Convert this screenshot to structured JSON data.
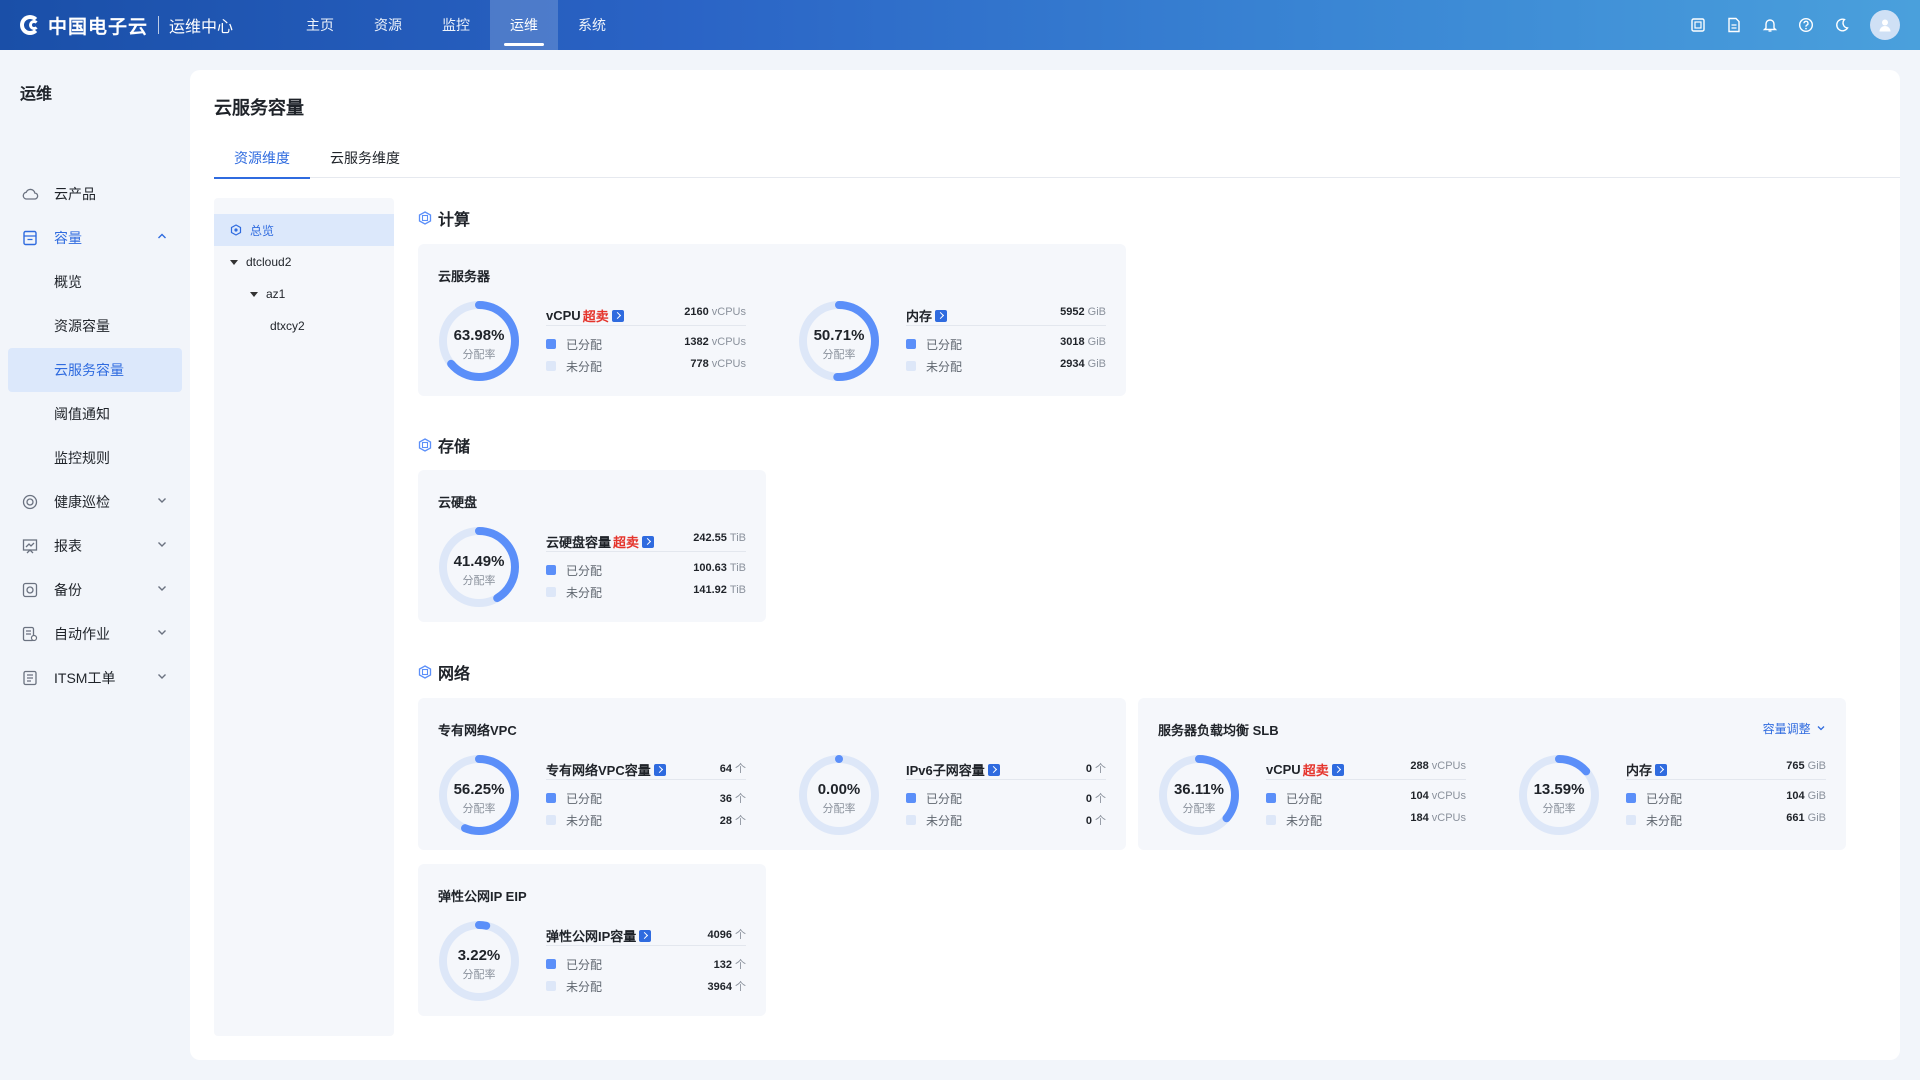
{
  "brand": {
    "name": "中国电子云",
    "sub": "运维中心"
  },
  "nav": [
    "主页",
    "资源",
    "监控",
    "运维",
    "系统"
  ],
  "nav_active": 3,
  "top_icons": [
    "screen-icon",
    "document-icon",
    "bell-icon",
    "help-icon",
    "moon-icon",
    "user-icon"
  ],
  "sidebar": {
    "title": "运维",
    "items": [
      {
        "label": "云产品",
        "icon": "cloud-icon"
      },
      {
        "label": "容量",
        "icon": "capacity-icon",
        "open": true,
        "children": [
          "概览",
          "资源容量",
          "云服务容量",
          "阈值通知",
          "监控规则"
        ]
      },
      {
        "label": "健康巡检",
        "icon": "health-icon"
      },
      {
        "label": "报表",
        "icon": "report-icon"
      },
      {
        "label": "备份",
        "icon": "backup-icon"
      },
      {
        "label": "自动作业",
        "icon": "automation-icon"
      },
      {
        "label": "ITSM工单",
        "icon": "ticket-icon"
      }
    ],
    "active_child": "云服务容量"
  },
  "page": {
    "title": "云服务容量",
    "tabs": [
      "资源维度",
      "云服务维度"
    ],
    "active_tab": 0
  },
  "tree": {
    "root": "总览",
    "nodes": [
      {
        "label": "dtcloud2",
        "level": 1
      },
      {
        "label": "az1",
        "level": 2
      },
      {
        "label": "dtxcy2",
        "level": 3
      }
    ]
  },
  "common": {
    "ratio_label": "分配率",
    "allocated": "已分配",
    "unallocated": "未分配",
    "oversell": "超卖"
  },
  "colors": {
    "primary": "#2f6bdf",
    "ring": "#5b8ff9",
    "ring_track": "#dde7f8",
    "allocated": "#5b8ff9",
    "unallocated": "#dde7f8",
    "oversell": "#e5342c"
  },
  "sections": {
    "compute": {
      "title": "计算",
      "card": {
        "title": "云服务器",
        "metrics": [
          {
            "name": "vCPU",
            "oversell": true,
            "pct": "63.98%",
            "ratio": 0.6398,
            "total": "2160",
            "allocated": "1382",
            "unallocated": "778",
            "unit": "vCPUs"
          },
          {
            "name": "内存",
            "oversell": false,
            "pct": "50.71%",
            "ratio": 0.5071,
            "total": "5952",
            "allocated": "3018",
            "unallocated": "2934",
            "unit": "GiB"
          }
        ]
      }
    },
    "storage": {
      "title": "存储",
      "card": {
        "title": "云硬盘",
        "metrics": [
          {
            "name": "云硬盘容量",
            "oversell": true,
            "pct": "41.49%",
            "ratio": 0.4149,
            "total": "242.55",
            "allocated": "100.63",
            "unallocated": "141.92",
            "unit": "TiB"
          }
        ]
      }
    },
    "network": {
      "title": "网络",
      "vpc": {
        "title": "专有网络VPC",
        "metrics": [
          {
            "name": "专有网络VPC容量",
            "oversell": false,
            "pct": "56.25%",
            "ratio": 0.5625,
            "total": "64",
            "allocated": "36",
            "unallocated": "28",
            "unit": "个"
          },
          {
            "name": "IPv6子网容量",
            "oversell": false,
            "pct": "0.00%",
            "ratio": 0,
            "total": "0",
            "allocated": "0",
            "unallocated": "0",
            "unit": "个"
          }
        ]
      },
      "slb": {
        "title": "服务器负载均衡 SLB",
        "link": "容量调整",
        "metrics": [
          {
            "name": "vCPU",
            "oversell": true,
            "pct": "36.11%",
            "ratio": 0.3611,
            "total": "288",
            "allocated": "104",
            "unallocated": "184",
            "unit": "vCPUs"
          },
          {
            "name": "内存",
            "oversell": false,
            "pct": "13.59%",
            "ratio": 0.1359,
            "total": "765",
            "allocated": "104",
            "unallocated": "661",
            "unit": "GiB"
          }
        ]
      },
      "eip": {
        "title": "弹性公网IP EIP",
        "metrics": [
          {
            "name": "弹性公网IP容量",
            "oversell": false,
            "pct": "3.22%",
            "ratio": 0.0322,
            "total": "4096",
            "allocated": "132",
            "unallocated": "3964",
            "unit": "个"
          }
        ]
      }
    }
  }
}
